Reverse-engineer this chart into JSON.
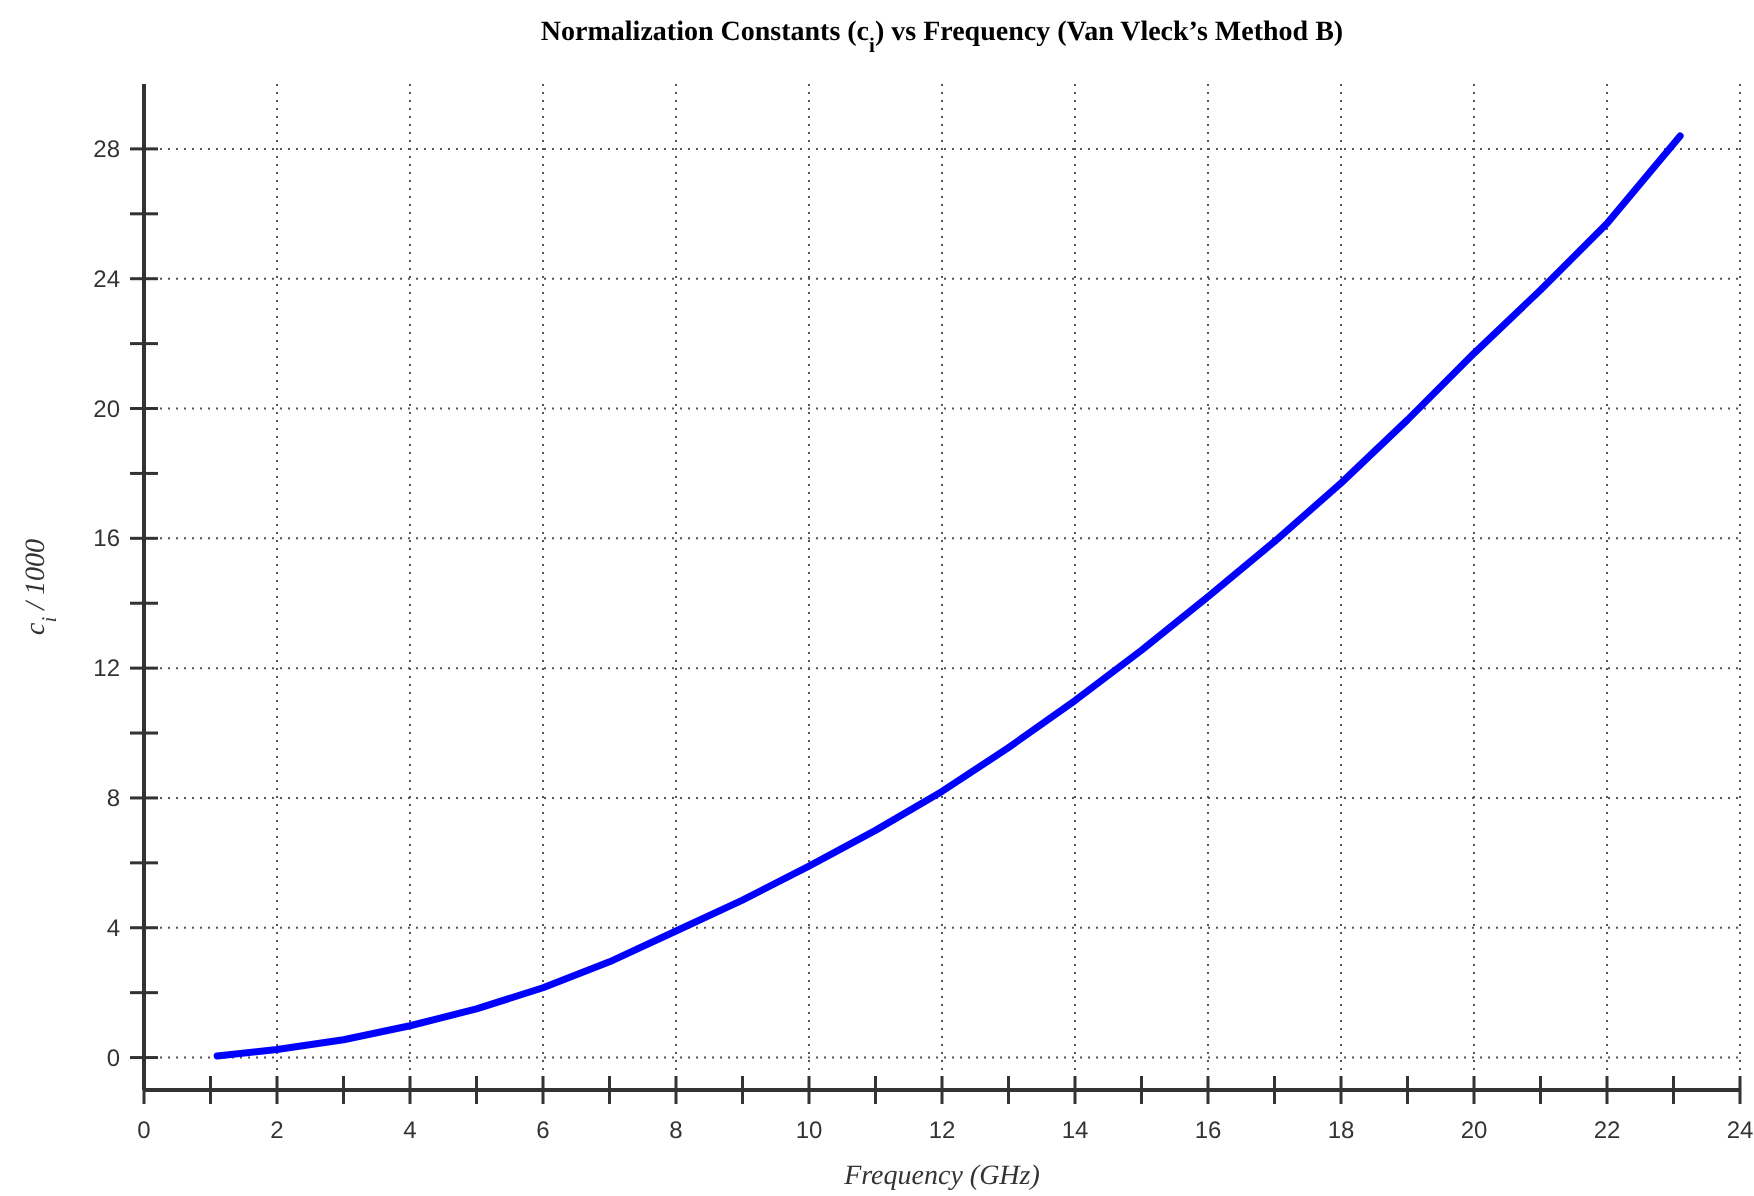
{
  "chart_data": {
    "type": "line",
    "title": "Normalization Constants (c$_{i}$) vs Frequency (Van Vleck’s Method B)",
    "xlabel": "Frequency (GHz)",
    "ylabel": "c$_{i}$ / 1000",
    "x": [
      1.1,
      2,
      3,
      4,
      5,
      6,
      7,
      8,
      9,
      10,
      11,
      12,
      13,
      14,
      15,
      16,
      17,
      18,
      19,
      20,
      21,
      22,
      23.1
    ],
    "series": [
      {
        "color": "#0000ff",
        "values": [
          0.05,
          0.25,
          0.55,
          0.98,
          1.5,
          2.15,
          2.95,
          3.9,
          4.85,
          5.9,
          7.0,
          8.2,
          9.55,
          11.0,
          12.55,
          14.2,
          15.9,
          17.7,
          19.65,
          21.7,
          23.65,
          25.7,
          28.4
        ]
      }
    ],
    "xlim": [
      0,
      24
    ],
    "ylim": [
      -1,
      30
    ],
    "xticks": [
      0,
      {
        "value": 1,
        "label": null
      },
      2,
      {
        "value": 3,
        "label": null
      },
      4,
      {
        "value": 5,
        "label": null
      },
      6,
      {
        "value": 7,
        "label": null
      },
      8,
      {
        "value": 9,
        "label": null
      },
      10,
      {
        "value": 11,
        "label": null
      },
      12,
      {
        "value": 13,
        "label": null
      },
      14,
      {
        "value": 15,
        "label": null
      },
      16,
      {
        "value": 17,
        "label": null
      },
      18,
      {
        "value": 19,
        "label": null
      },
      20,
      {
        "value": 21,
        "label": null
      },
      22,
      {
        "value": 23,
        "label": null
      },
      24
    ],
    "yticks": [
      0,
      {
        "value": 2,
        "label": null
      },
      4,
      {
        "value": 6,
        "label": null
      },
      8,
      {
        "value": 10,
        "label": null
      },
      12,
      {
        "value": 14,
        "label": null
      },
      16,
      {
        "value": 18,
        "label": null
      },
      20,
      {
        "value": 22,
        "label": null
      },
      24,
      {
        "value": 26,
        "label": null
      },
      28
    ],
    "grid": true,
    "line_style": "solid",
    "marker": "none"
  }
}
